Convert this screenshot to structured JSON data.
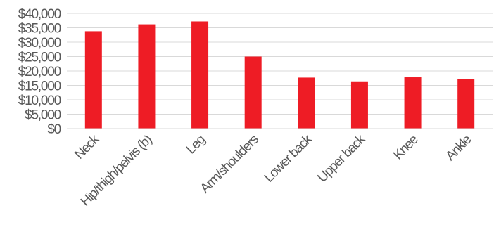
{
  "chart_data": {
    "type": "bar",
    "categories": [
      "Neck",
      "Hip/thigh/pelvis (b)",
      "Leg",
      "Arm/shoulders",
      "Lower back",
      "Upper back",
      "Knee",
      "Ankle"
    ],
    "values": [
      33800,
      36200,
      37200,
      25000,
      17700,
      16400,
      17800,
      17200
    ],
    "yticks": [
      "$0",
      "$5,000",
      "$10,000",
      "$15,000",
      "$20,000",
      "$25,000",
      "$30,000",
      "$35,000",
      "$40,000"
    ],
    "ylim": [
      0,
      40000
    ],
    "bar_color": "#ee1c25",
    "grid": true,
    "title": "",
    "xlabel": "",
    "ylabel": ""
  }
}
